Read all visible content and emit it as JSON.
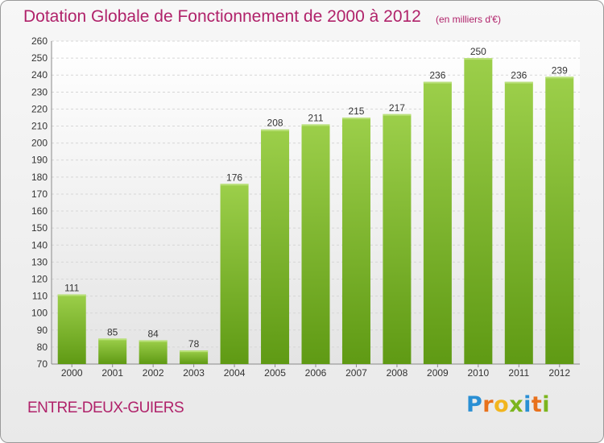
{
  "title": "Dotation Globale de Fonctionnement de 2000 à 2012",
  "unit": "(en milliers d'€)",
  "place": "ENTRE-DEUX-GUIERS",
  "logo": {
    "letters": [
      "P",
      "r",
      "o",
      "x",
      "i",
      "t",
      "i"
    ],
    "colors": [
      "#2a8fd4",
      "#e8711c",
      "#f2b51e",
      "#7cb51e",
      "#2a8fd4",
      "#e8711c",
      "#7cb51e"
    ]
  },
  "colors": {
    "title": "#b0226a",
    "bar_light": "#9ccf4a",
    "bar_dark": "#5f9a14"
  },
  "chart_data": {
    "type": "bar",
    "title": "Dotation Globale de Fonctionnement de 2000 à 2012",
    "ylabel": "",
    "xlabel": "",
    "categories": [
      "2000",
      "2001",
      "2002",
      "2003",
      "2004",
      "2005",
      "2006",
      "2007",
      "2008",
      "2009",
      "2010",
      "2011",
      "2012"
    ],
    "values": [
      111,
      85,
      84,
      78,
      176,
      208,
      211,
      215,
      217,
      236,
      250,
      236,
      239
    ],
    "ylim": [
      70,
      260
    ],
    "yticks": [
      70,
      80,
      90,
      100,
      110,
      120,
      130,
      140,
      150,
      160,
      170,
      180,
      190,
      200,
      210,
      220,
      230,
      240,
      250,
      260
    ],
    "grid": true,
    "legend": "none"
  }
}
